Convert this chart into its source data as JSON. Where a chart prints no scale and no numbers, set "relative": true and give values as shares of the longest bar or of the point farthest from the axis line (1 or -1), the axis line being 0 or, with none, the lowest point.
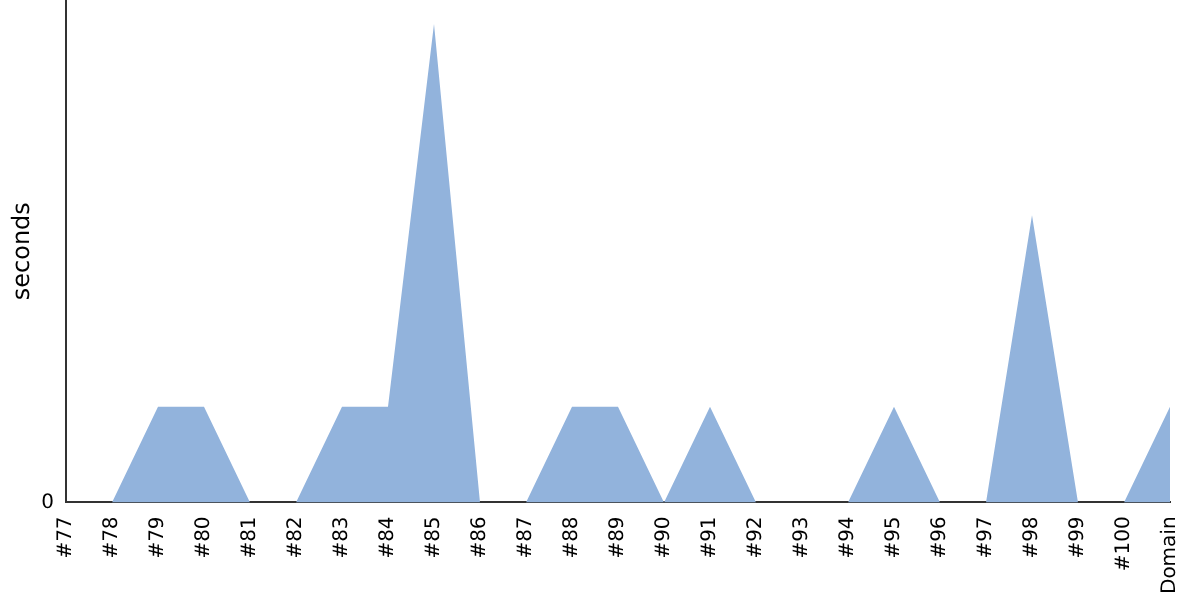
{
  "chart_data": {
    "type": "area",
    "ylabel": "seconds",
    "relative": true,
    "annotations": [
      "0"
    ],
    "grid": false,
    "legend": false,
    "categories": [
      "#77",
      "#78",
      "#79",
      "#80",
      "#81",
      "#82",
      "#83",
      "#84",
      "#85",
      "#86",
      "#87",
      "#88",
      "#89",
      "#90",
      "#91",
      "#92",
      "#93",
      "#94",
      "#95",
      "#96",
      "#97",
      "#98",
      "#99",
      "#100",
      "Domain"
    ],
    "series": [
      {
        "color": "#92b3dc",
        "values": [
          0,
          0,
          0.2,
          0.2,
          0,
          0,
          0.2,
          0.2,
          1,
          0,
          0,
          0.2,
          0.2,
          0,
          0.2,
          0,
          0,
          0,
          0.2,
          0,
          0,
          0.6,
          0,
          0,
          0.2
        ]
      }
    ]
  }
}
